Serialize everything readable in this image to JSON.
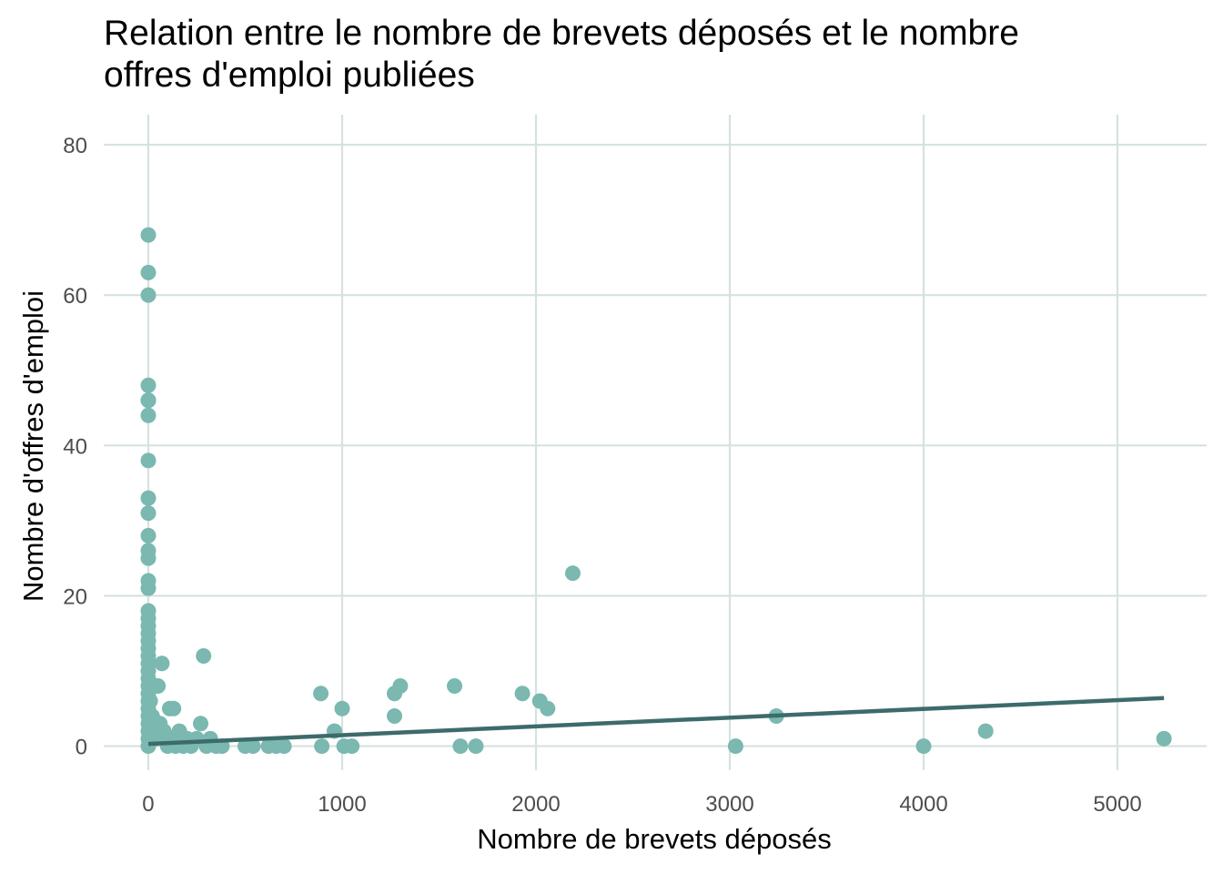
{
  "chart_data": {
    "type": "scatter",
    "title": "Relation entre le nombre de brevets déposés et le nombre\n offres d'emploi publiées",
    "xlabel": "Nombre de brevets déposés",
    "ylabel": "Nombre d'offres d'emploi",
    "xlim": [
      -230,
      5460
    ],
    "ylim": [
      -3.2,
      84
    ],
    "x_ticks": [
      0,
      1000,
      2000,
      3000,
      4000,
      5000
    ],
    "x_tick_labels": [
      "0",
      "1000",
      "2000",
      "3000",
      "4000",
      "5000"
    ],
    "y_ticks": [
      0,
      20,
      40,
      60,
      80
    ],
    "y_tick_labels": [
      "0",
      "20",
      "40",
      "60",
      "80"
    ],
    "grid": true,
    "legend": "none",
    "point_color": "#7ab8b0",
    "line_color": "#3d6b6b",
    "grid_color": "#d5e2e0",
    "points": [
      [
        0,
        68
      ],
      [
        0,
        63
      ],
      [
        0,
        60
      ],
      [
        0,
        48
      ],
      [
        0,
        46
      ],
      [
        0,
        46
      ],
      [
        0,
        44
      ],
      [
        0,
        38
      ],
      [
        0,
        33
      ],
      [
        0,
        31
      ],
      [
        0,
        28
      ],
      [
        0,
        26
      ],
      [
        0,
        25
      ],
      [
        0,
        22
      ],
      [
        0,
        21
      ],
      [
        0,
        18
      ],
      [
        0,
        17
      ],
      [
        0,
        16
      ],
      [
        0,
        15
      ],
      [
        0,
        14
      ],
      [
        0,
        13
      ],
      [
        0,
        12
      ],
      [
        0,
        11
      ],
      [
        0,
        10
      ],
      [
        0,
        9
      ],
      [
        0,
        8
      ],
      [
        0,
        7
      ],
      [
        0,
        6
      ],
      [
        0,
        5
      ],
      [
        0,
        4
      ],
      [
        0,
        3
      ],
      [
        0,
        2
      ],
      [
        0,
        1
      ],
      [
        0,
        0
      ],
      [
        10,
        6
      ],
      [
        20,
        4
      ],
      [
        30,
        2
      ],
      [
        40,
        1
      ],
      [
        50,
        8
      ],
      [
        60,
        3
      ],
      [
        70,
        11
      ],
      [
        80,
        2
      ],
      [
        90,
        1
      ],
      [
        100,
        0
      ],
      [
        110,
        5
      ],
      [
        120,
        1
      ],
      [
        130,
        5
      ],
      [
        140,
        0
      ],
      [
        160,
        2
      ],
      [
        180,
        0
      ],
      [
        200,
        1
      ],
      [
        220,
        0
      ],
      [
        250,
        1
      ],
      [
        270,
        3
      ],
      [
        285,
        12
      ],
      [
        300,
        0
      ],
      [
        320,
        1
      ],
      [
        350,
        0
      ],
      [
        380,
        0
      ],
      [
        500,
        0
      ],
      [
        540,
        0
      ],
      [
        620,
        0
      ],
      [
        660,
        0
      ],
      [
        700,
        0
      ],
      [
        890,
        7
      ],
      [
        895,
        0
      ],
      [
        960,
        2
      ],
      [
        1000,
        5
      ],
      [
        1010,
        0
      ],
      [
        1050,
        0
      ],
      [
        1270,
        4
      ],
      [
        1270,
        7
      ],
      [
        1300,
        8
      ],
      [
        1580,
        8
      ],
      [
        1610,
        0
      ],
      [
        1690,
        0
      ],
      [
        1930,
        7
      ],
      [
        2020,
        6
      ],
      [
        2060,
        5
      ],
      [
        2190,
        23
      ],
      [
        3030,
        0
      ],
      [
        3240,
        4
      ],
      [
        4000,
        0
      ],
      [
        4320,
        2
      ],
      [
        5240,
        1
      ]
    ],
    "trend_line": {
      "x": [
        0,
        5240
      ],
      "y": [
        0.3,
        6.4
      ]
    }
  }
}
